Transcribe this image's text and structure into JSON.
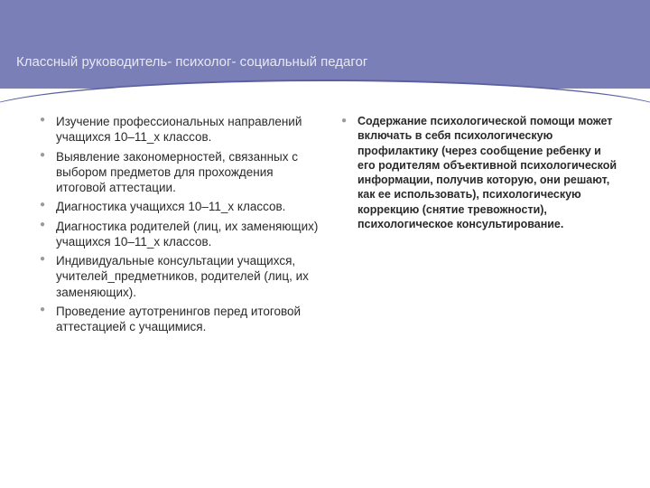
{
  "slide": {
    "title": "Классный руководитель- психолог- социальный педагог",
    "background_color": "#ffffff",
    "header_color": "#7a7fb8",
    "header_border_color": "#5a5f9e",
    "title_color": "#e8e8f2",
    "title_fontsize": 15,
    "bullet_color": "#9a9a9a",
    "body_text_color": "#2a2a2a",
    "body_fontsize": 13.5,
    "right_fontsize": 12.5
  },
  "left": {
    "items": [
      "Изучение профессиональных направлений учащихся 10–11_х классов.",
      "Выявление закономерностей, связанных с выбором предметов для прохождения итоговой аттестации.",
      "Диагностика учащихся 10–11_х классов.",
      "Диагностика родителей (лиц, их заменяющих) учащихся 10–11_х классов.",
      "Индивидуальные консультации учащихся, учителей_предметников, родителей (лиц, их заменяющих).",
      "Проведение аутотренингов перед итоговой аттестацией с учащимися."
    ]
  },
  "right": {
    "items": [
      "Содержание психологической помощи может включать в себя психологическую профилактику (через сообщение ребенку и его родителям объективной психологической информации, получив которую, они решают, как ее использовать), психологическую коррекцию (снятие тревожности), психологическое консультирование."
    ]
  }
}
